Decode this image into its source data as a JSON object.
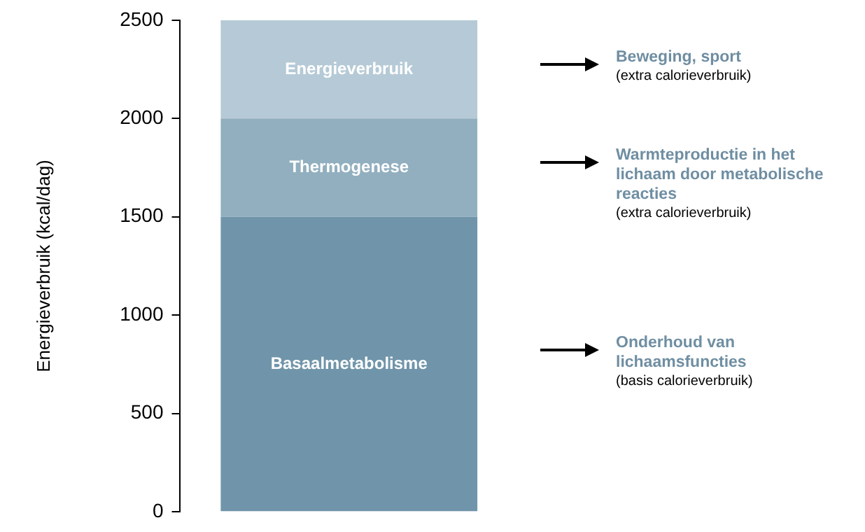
{
  "chart_data": {
    "type": "bar",
    "stacked": true,
    "ylabel": "Energieverbruik (kcal/dag)",
    "categories": [
      null
    ],
    "series": [
      {
        "name": "Basaalmetabolisme",
        "color": "#7095aa",
        "values": [
          1500
        ]
      },
      {
        "name": "Thermogenese",
        "color": "#92afbf",
        "values": [
          500
        ]
      },
      {
        "name": "Energieverbruik",
        "color": "#b5cad6",
        "values": [
          500
        ]
      }
    ],
    "ylim": [
      0,
      2500
    ],
    "yticks": [
      0,
      500,
      1000,
      1500,
      2000,
      2500
    ],
    "grid": false,
    "legend": false,
    "annotations": [
      "Beweging, sport\n(extra calorieverbruik)",
      "Warmteproductie in het\nlichaam door metabolische\nreacties\n(extra calorieverbruik)",
      "Onderhoud van\nlichaamsfuncties\n(basis calorieverbruik)"
    ]
  }
}
